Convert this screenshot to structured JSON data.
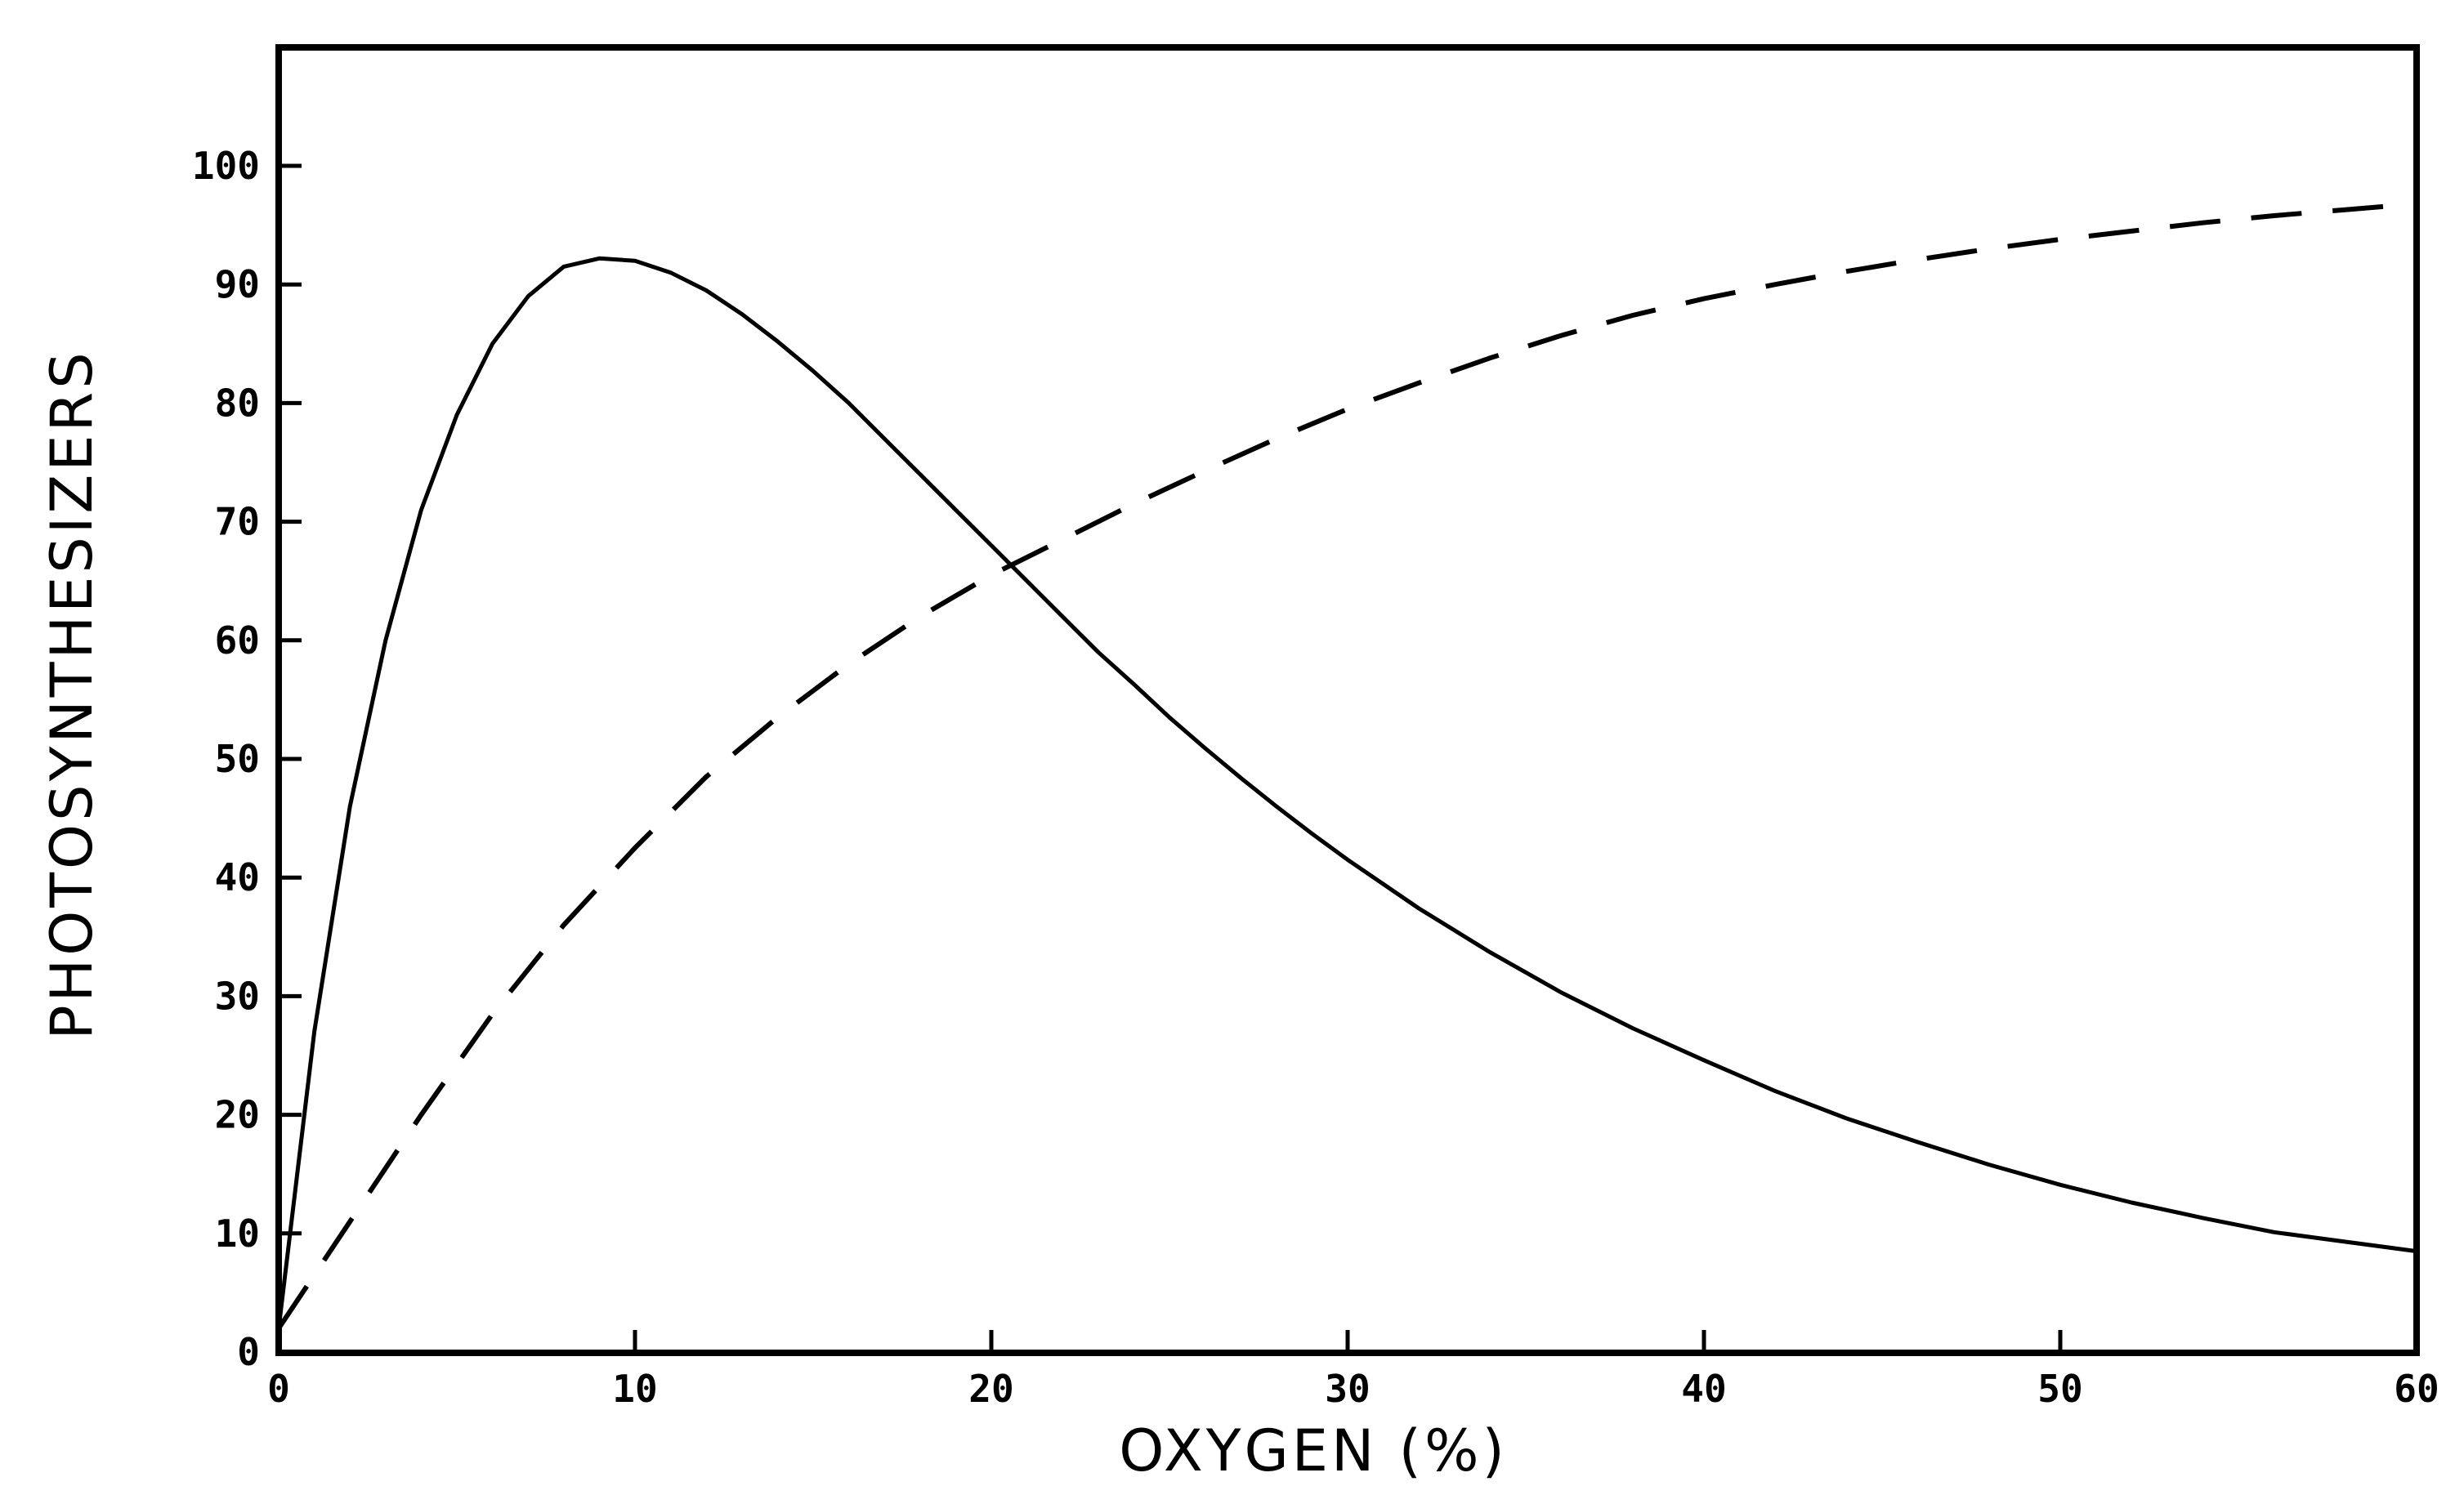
{
  "chart_data": {
    "type": "line",
    "title": "",
    "xlabel": "OXYGEN (%)",
    "ylabel": "PHOTOSYNTHESIZERS",
    "xlim": [
      0,
      60
    ],
    "ylim": [
      0,
      110
    ],
    "xticks": [
      "0",
      "10",
      "20",
      "30",
      "40",
      "50",
      "60"
    ],
    "yticks": [
      "0",
      "10",
      "20",
      "30",
      "40",
      "50",
      "60",
      "70",
      "80",
      "90",
      "100"
    ],
    "grid": false,
    "legend": "none",
    "series": [
      {
        "style": "solid",
        "color": "#000000",
        "x": [
          0,
          1,
          2,
          3,
          4,
          5,
          6,
          7,
          8,
          9,
          10,
          11,
          12,
          13,
          14,
          15,
          16,
          17,
          18,
          19,
          20,
          21,
          22,
          23,
          24,
          25,
          26,
          27,
          28,
          29,
          30,
          32,
          34,
          36,
          38,
          40,
          42,
          44,
          46,
          48,
          50,
          52,
          54,
          56,
          58,
          60
        ],
        "y": [
          2,
          27,
          46,
          60,
          71,
          79,
          85,
          89,
          91.5,
          92.2,
          92,
          91,
          89.5,
          87.5,
          85.2,
          82.7,
          80,
          77,
          74,
          71,
          68,
          65,
          62,
          59,
          56.3,
          53.5,
          50.9,
          48.4,
          46,
          43.7,
          41.5,
          37.4,
          33.7,
          30.3,
          27.3,
          24.6,
          22,
          19.7,
          17.7,
          15.8,
          14.1,
          12.6,
          11.3,
          10.1,
          9.3,
          8.5
        ]
      },
      {
        "style": "dashed",
        "color": "#000000",
        "x": [
          0,
          2,
          4,
          6,
          8,
          10,
          12,
          14,
          16,
          18,
          20,
          22,
          24,
          26,
          28,
          30,
          32,
          34,
          36,
          38,
          40,
          42,
          44,
          46,
          48,
          50,
          52,
          54,
          56,
          58,
          60
        ],
        "y": [
          2,
          11,
          20,
          28.5,
          36,
          42.5,
          48.5,
          53.5,
          58,
          62,
          65.5,
          68.5,
          71.5,
          74.3,
          77,
          79.5,
          81.7,
          83.8,
          85.7,
          87.4,
          88.8,
          90,
          91.1,
          92.1,
          93,
          93.8,
          94.5,
          95.2,
          95.8,
          96.3,
          96.8
        ]
      }
    ]
  }
}
